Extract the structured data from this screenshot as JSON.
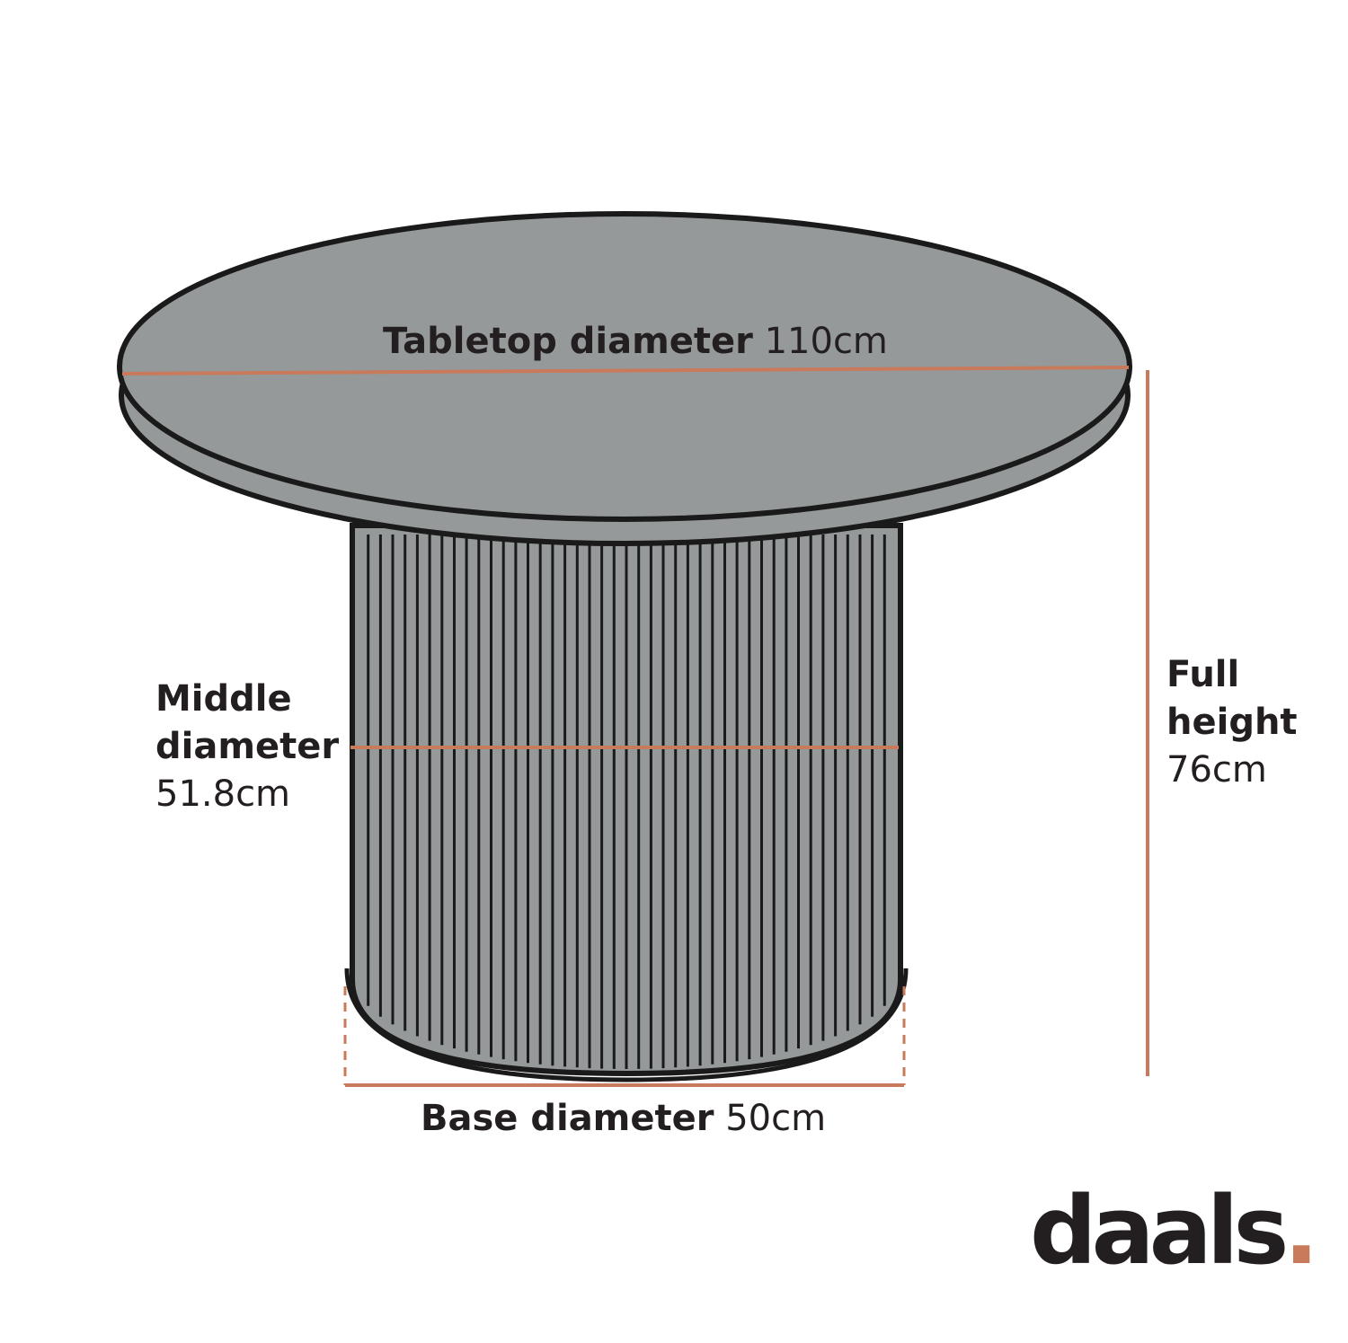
{
  "labels": {
    "tabletop": {
      "name": "Tabletop diameter",
      "value": "110cm"
    },
    "middle": {
      "name_line1": "Middle",
      "name_line2": "diameter",
      "value": "51.8cm"
    },
    "height": {
      "name_line1": "Full",
      "name_line2": "height",
      "value": "76cm"
    },
    "base": {
      "name": "Base diameter",
      "value": "50cm"
    }
  },
  "logo": {
    "word": "daals",
    "dot": "."
  },
  "colors": {
    "table_fill": "#95999a",
    "outline": "#1a1a1a",
    "measure_line": "#c87a5a",
    "text": "#231f20"
  }
}
